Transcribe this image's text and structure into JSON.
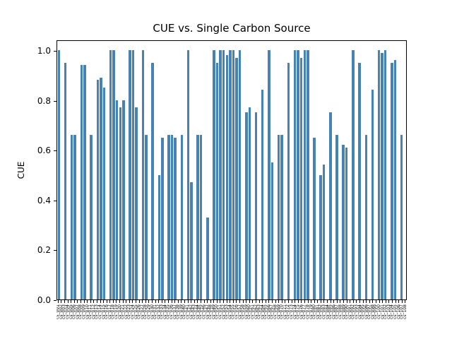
{
  "figure": {
    "title": "CUE vs. Single Carbon Source",
    "ylabel": "CUE"
  },
  "chart_data": {
    "type": "bar",
    "title": "CUE vs. Single Carbon Source",
    "xlabel": "",
    "ylabel": "CUE",
    "ylim": [
      0.0,
      1.04
    ],
    "y_ticks": [
      "0.0",
      "0.2",
      "0.4",
      "0.6",
      "0.8",
      "1.0"
    ],
    "grid": false,
    "legend": null,
    "bar_color": "#4682b4",
    "x_tick_label_rotation": 90,
    "x_tick_labels_readable": false,
    "note": "x tick labels are rotated 90 degrees and overlap into an illegible dense band; placeholder category names used",
    "categories": [
      "cs_001",
      "cs_002",
      "cs_003",
      "cs_004",
      "cs_005",
      "cs_006",
      "cs_007",
      "cs_008",
      "cs_009",
      "cs_010",
      "cs_011",
      "cs_012",
      "cs_013",
      "cs_014",
      "cs_015",
      "cs_016",
      "cs_017",
      "cs_018",
      "cs_019",
      "cs_020",
      "cs_021",
      "cs_022",
      "cs_023",
      "cs_024",
      "cs_025",
      "cs_026",
      "cs_027",
      "cs_028",
      "cs_029",
      "cs_030",
      "cs_031",
      "cs_032",
      "cs_033",
      "cs_034",
      "cs_035",
      "cs_036",
      "cs_037",
      "cs_038",
      "cs_039",
      "cs_040",
      "cs_041",
      "cs_042",
      "cs_043",
      "cs_044",
      "cs_045",
      "cs_046",
      "cs_047",
      "cs_048",
      "cs_049",
      "cs_050",
      "cs_051",
      "cs_052",
      "cs_053",
      "cs_054",
      "cs_055",
      "cs_056",
      "cs_057",
      "cs_058",
      "cs_059",
      "cs_060",
      "cs_061",
      "cs_062",
      "cs_063",
      "cs_064",
      "cs_065",
      "cs_066",
      "cs_067",
      "cs_068",
      "cs_069",
      "cs_070",
      "cs_071",
      "cs_072",
      "cs_073",
      "cs_074",
      "cs_075",
      "cs_076",
      "cs_077",
      "cs_078",
      "cs_079",
      "cs_080",
      "cs_081",
      "cs_082",
      "cs_083",
      "cs_084",
      "cs_085",
      "cs_086",
      "cs_087",
      "cs_088",
      "cs_089",
      "cs_090",
      "cs_091",
      "cs_092",
      "cs_093",
      "cs_094",
      "cs_095",
      "cs_096",
      "cs_097",
      "cs_098",
      "cs_099",
      "cs_100",
      "cs_101",
      "cs_102",
      "cs_103",
      "cs_104",
      "cs_105",
      "cs_106",
      "cs_107",
      "cs_108"
    ],
    "values": [
      1.0,
      0,
      0.95,
      0,
      0.66,
      0.66,
      0,
      0.94,
      0.94,
      0,
      0.66,
      0,
      0.88,
      0.89,
      0.85,
      0,
      1.0,
      1.0,
      0.8,
      0.77,
      0.8,
      0,
      1.0,
      1.0,
      0.77,
      0,
      1.0,
      0.66,
      0,
      0.95,
      0,
      0.5,
      0.65,
      0,
      0.66,
      0.66,
      0.65,
      0,
      0.66,
      0,
      1.0,
      0.47,
      0,
      0.66,
      0.66,
      0,
      0.33,
      0,
      1.0,
      0.95,
      1.0,
      1.0,
      0.98,
      1.0,
      1.0,
      0.97,
      1.0,
      0,
      0.75,
      0.77,
      0,
      0.75,
      0,
      0.84,
      0,
      1.0,
      0.55,
      0,
      0.66,
      0.66,
      0,
      0.95,
      0,
      1.0,
      1.0,
      0.97,
      1.0,
      1.0,
      0,
      0.65,
      0,
      0.5,
      0.54,
      0,
      0.75,
      0,
      0.66,
      0,
      0.62,
      0.61,
      0,
      1.0,
      0,
      0.95,
      0,
      0.66,
      0,
      0.84,
      0,
      1.0,
      0.99,
      1.0,
      0,
      0.95,
      0.96,
      0,
      0.66,
      0
    ]
  }
}
